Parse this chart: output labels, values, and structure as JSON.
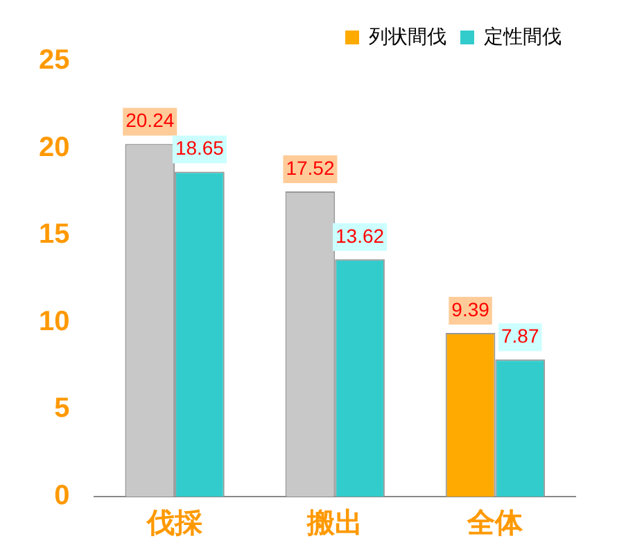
{
  "chart_data": {
    "type": "bar",
    "categories": [
      "伐採",
      "搬出",
      "全体"
    ],
    "series": [
      {
        "name": "列状間伐",
        "color": "#ffaa00",
        "colors": [
          "#c8c8c8",
          "#c8c8c8",
          "#ffaa00"
        ],
        "values": [
          20.24,
          17.52,
          9.39
        ]
      },
      {
        "name": "定性間伐",
        "color": "#33cccc",
        "values": [
          18.65,
          13.62,
          7.87
        ]
      }
    ],
    "ylim": [
      0,
      25
    ],
    "yticks": [
      0,
      5,
      10,
      15,
      20,
      25
    ],
    "grid": false,
    "legend": "top right",
    "data_labels": true
  }
}
